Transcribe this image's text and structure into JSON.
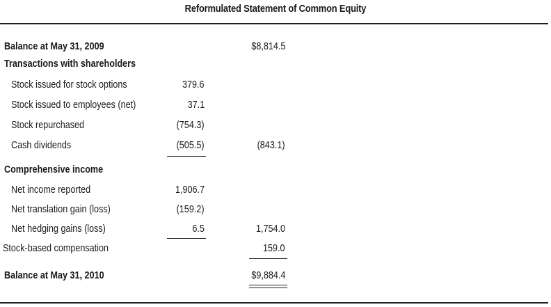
{
  "title": "Reformulated Statement of Common Equity",
  "rows": [
    {
      "label": "Balance at May 31, 2009",
      "col1": "",
      "col2": "$8,814.5"
    },
    {
      "label": "Transactions with shareholders",
      "col1": "",
      "col2": ""
    },
    {
      "label": "Stock issued for stock options",
      "col1": "379.6",
      "col2": ""
    },
    {
      "label": "Stock issued to employees (net)",
      "col1": "37.1",
      "col2": ""
    },
    {
      "label": "Stock repurchased",
      "col1": "(754.3)",
      "col2": ""
    },
    {
      "label": "Cash dividends",
      "col1": "(505.5)",
      "col2": "(843.1)"
    },
    {
      "label": "Comprehensive income",
      "col1": "",
      "col2": ""
    },
    {
      "label": "Net income reported",
      "col1": "1,906.7",
      "col2": ""
    },
    {
      "label": "Net translation gain (loss)",
      "col1": "(159.2)",
      "col2": ""
    },
    {
      "label": "Net hedging gains (loss)",
      "col1": "6.5",
      "col2": "1,754.0"
    },
    {
      "label": "Stock-based compensation",
      "col1": "",
      "col2": "159.0"
    },
    {
      "label": "Balance at May 31, 2010",
      "col1": "",
      "col2": "$9,884.4"
    }
  ]
}
